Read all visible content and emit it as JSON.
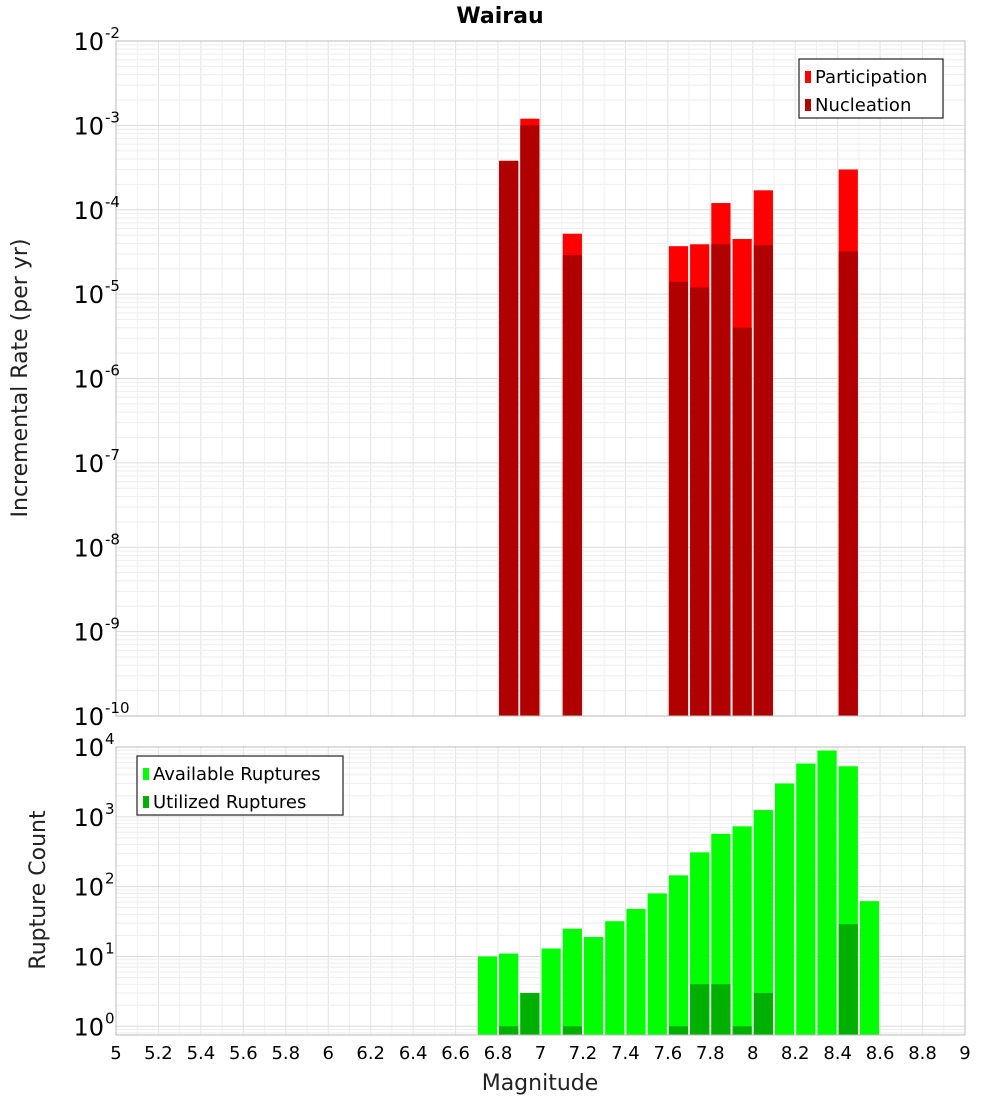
{
  "chart_data": [
    {
      "type": "bar",
      "title": "Wairau",
      "xlabel": "",
      "ylabel": "Incremental Rate (per yr)",
      "yscale": "log",
      "ylim": [
        1e-10,
        0.01
      ],
      "xlim": [
        5,
        9
      ],
      "grid": true,
      "legend_position": "top-right",
      "ytick_labels": [
        {
          "base": "10",
          "exp": "-10",
          "value": 1e-10
        },
        {
          "base": "10",
          "exp": "-9",
          "value": 1e-09
        },
        {
          "base": "10",
          "exp": "-8",
          "value": 1e-08
        },
        {
          "base": "10",
          "exp": "-7",
          "value": 1e-07
        },
        {
          "base": "10",
          "exp": "-6",
          "value": 1e-06
        },
        {
          "base": "10",
          "exp": "-5",
          "value": 1e-05
        },
        {
          "base": "10",
          "exp": "-4",
          "value": 0.0001
        },
        {
          "base": "10",
          "exp": "-3",
          "value": 0.001
        },
        {
          "base": "10",
          "exp": "-2",
          "value": 0.01
        }
      ],
      "x": [
        6.85,
        6.95,
        7.15,
        7.65,
        7.75,
        7.85,
        7.95,
        8.05,
        8.45
      ],
      "series": [
        {
          "name": "Participation",
          "color": "#ff0000",
          "values": [
            0.00038,
            0.0012,
            5.2e-05,
            3.7e-05,
            3.9e-05,
            0.00012,
            4.5e-05,
            0.00017,
            0.0003
          ]
        },
        {
          "name": "Nucleation",
          "color": "#b00000",
          "values": [
            0.00038,
            0.001,
            2.9e-05,
            1.4e-05,
            1.2e-05,
            3.9e-05,
            4e-06,
            3.8e-05,
            3.2e-05
          ]
        }
      ]
    },
    {
      "type": "bar",
      "title": "",
      "xlabel": "Magnitude",
      "ylabel": "Rupture Count",
      "yscale": "log",
      "ylim": [
        0.75,
        10000
      ],
      "xlim": [
        5,
        9
      ],
      "grid": true,
      "legend_position": "top-left",
      "xtick_labels": [
        "5",
        "5.2",
        "5.4",
        "5.6",
        "5.8",
        "6",
        "6.2",
        "6.4",
        "6.6",
        "6.8",
        "7",
        "7.2",
        "7.4",
        "7.6",
        "7.8",
        "8",
        "8.2",
        "8.4",
        "8.6",
        "8.8",
        "9"
      ],
      "ytick_labels": [
        {
          "base": "10",
          "exp": "0",
          "value": 1
        },
        {
          "base": "10",
          "exp": "1",
          "value": 10
        },
        {
          "base": "10",
          "exp": "2",
          "value": 100
        },
        {
          "base": "10",
          "exp": "3",
          "value": 1000
        },
        {
          "base": "10",
          "exp": "4",
          "value": 10000
        }
      ],
      "x": [
        6.75,
        6.85,
        6.95,
        7.05,
        7.15,
        7.25,
        7.35,
        7.45,
        7.55,
        7.65,
        7.75,
        7.85,
        7.95,
        8.05,
        8.15,
        8.25,
        8.35,
        8.45,
        8.55
      ],
      "series": [
        {
          "name": "Available Ruptures",
          "color": "#00ff00",
          "values": [
            10,
            11,
            3,
            13,
            25,
            19,
            32,
            48,
            80,
            145,
            310,
            570,
            730,
            1250,
            3000,
            5800,
            8900,
            5300,
            62
          ]
        },
        {
          "name": "Utilized Ruptures",
          "color": "#00b000",
          "values": [
            0,
            1,
            3,
            0,
            1,
            0,
            0,
            0,
            0,
            1,
            4,
            4,
            1,
            3,
            0,
            0,
            0,
            29,
            0
          ]
        }
      ]
    }
  ]
}
